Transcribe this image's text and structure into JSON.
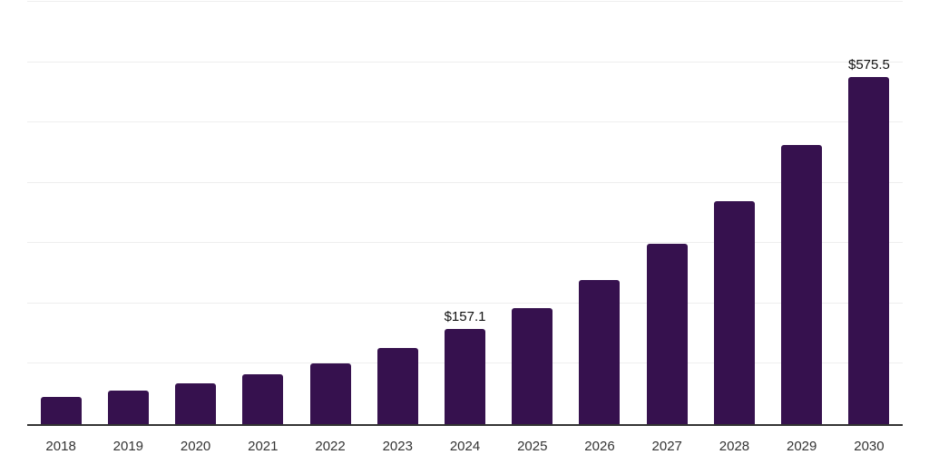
{
  "page": {
    "background_color": "#ffffff"
  },
  "chart_data": {
    "type": "bar",
    "title": "",
    "xlabel": "",
    "ylabel": "",
    "categories": [
      "2018",
      "2019",
      "2020",
      "2021",
      "2022",
      "2023",
      "2024",
      "2025",
      "2026",
      "2027",
      "2028",
      "2029",
      "2030"
    ],
    "values": [
      45,
      55,
      67,
      82,
      101,
      126,
      157.1,
      193,
      239,
      299,
      370,
      462,
      575.5
    ],
    "data_labels": [
      "",
      "",
      "",
      "",
      "",
      "",
      "$157.1",
      "",
      "",
      "",
      "",
      "",
      "$575.5"
    ],
    "ylim": [
      0,
      700
    ],
    "gridline_interval": 100,
    "grid_visible": true,
    "legend": "none",
    "colors": {
      "bar_fill": "#36114E",
      "gridline": "#eeeeee",
      "axis_line": "#333333",
      "value_label_text": "#111111",
      "tick_label_text": "#333333"
    }
  }
}
